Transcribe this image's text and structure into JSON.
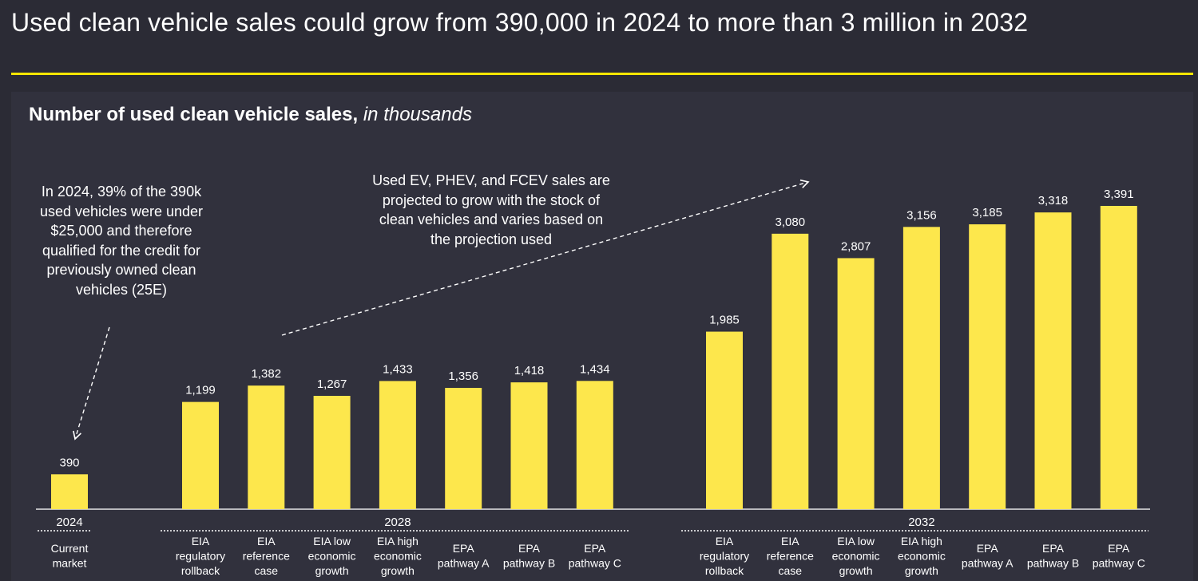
{
  "headline": "Used clean vehicle sales could grow from 390,000 in 2024 to more than 3 million in 2032",
  "colors": {
    "background": "#2b2b35",
    "panel": "#31313d",
    "accent": "#ffe600",
    "bar": "#fde74c"
  },
  "chart_data": {
    "type": "bar",
    "title": "Number of used clean vehicle sales,",
    "subtitle": "in thousands",
    "groups": [
      {
        "year": "2024",
        "categories": [
          "Current market"
        ],
        "category_lines": [
          [
            "Current",
            "market"
          ]
        ],
        "values": [
          390
        ],
        "value_labels": [
          "390"
        ]
      },
      {
        "year": "2028",
        "categories": [
          "EIA regulatory rollback",
          "EIA reference case",
          "EIA low economic growth",
          "EIA high economic growth",
          "EPA pathway A",
          "EPA pathway B",
          "EPA pathway C"
        ],
        "category_lines": [
          [
            "EIA",
            "regulatory",
            "rollback"
          ],
          [
            "EIA",
            "reference",
            "case"
          ],
          [
            "EIA low",
            "economic",
            "growth"
          ],
          [
            "EIA high",
            "economic",
            "growth"
          ],
          [
            "EPA",
            "pathway A"
          ],
          [
            "EPA",
            "pathway B"
          ],
          [
            "EPA",
            "pathway C"
          ]
        ],
        "values": [
          1199,
          1382,
          1267,
          1433,
          1356,
          1418,
          1434
        ],
        "value_labels": [
          "1,199",
          "1,382",
          "1,267",
          "1,433",
          "1,356",
          "1,418",
          "1,434"
        ]
      },
      {
        "year": "2032",
        "categories": [
          "EIA regulatory rollback",
          "EIA reference case",
          "EIA low economic growth",
          "EIA high economic growth",
          "EPA pathway A",
          "EPA pathway B",
          "EPA pathway C"
        ],
        "category_lines": [
          [
            "EIA",
            "regulatory",
            "rollback"
          ],
          [
            "EIA",
            "reference",
            "case"
          ],
          [
            "EIA low",
            "economic",
            "growth"
          ],
          [
            "EIA high",
            "economic",
            "growth"
          ],
          [
            "EPA",
            "pathway A"
          ],
          [
            "EPA",
            "pathway B"
          ],
          [
            "EPA",
            "pathway C"
          ]
        ],
        "values": [
          1985,
          3080,
          2807,
          3156,
          3185,
          3318,
          3391
        ],
        "value_labels": [
          "1,985",
          "3,080",
          "2,807",
          "3,156",
          "3,185",
          "3,318",
          "3,391"
        ]
      }
    ],
    "ylim": [
      0,
      3500
    ],
    "grid": false,
    "legend": "none",
    "annotations": [
      {
        "id": "note-2024",
        "lines": [
          "In 2024, 39% of the 390k",
          "used vehicles were under",
          "$25,000 and therefore",
          "qualified for the credit for",
          "previously owned clean",
          "vehicles (25E)"
        ]
      },
      {
        "id": "note-growth",
        "lines": [
          "Used EV, PHEV, and FCEV sales are",
          "projected to grow with the stock of",
          "clean vehicles and varies based on",
          "the projection used"
        ]
      }
    ]
  }
}
